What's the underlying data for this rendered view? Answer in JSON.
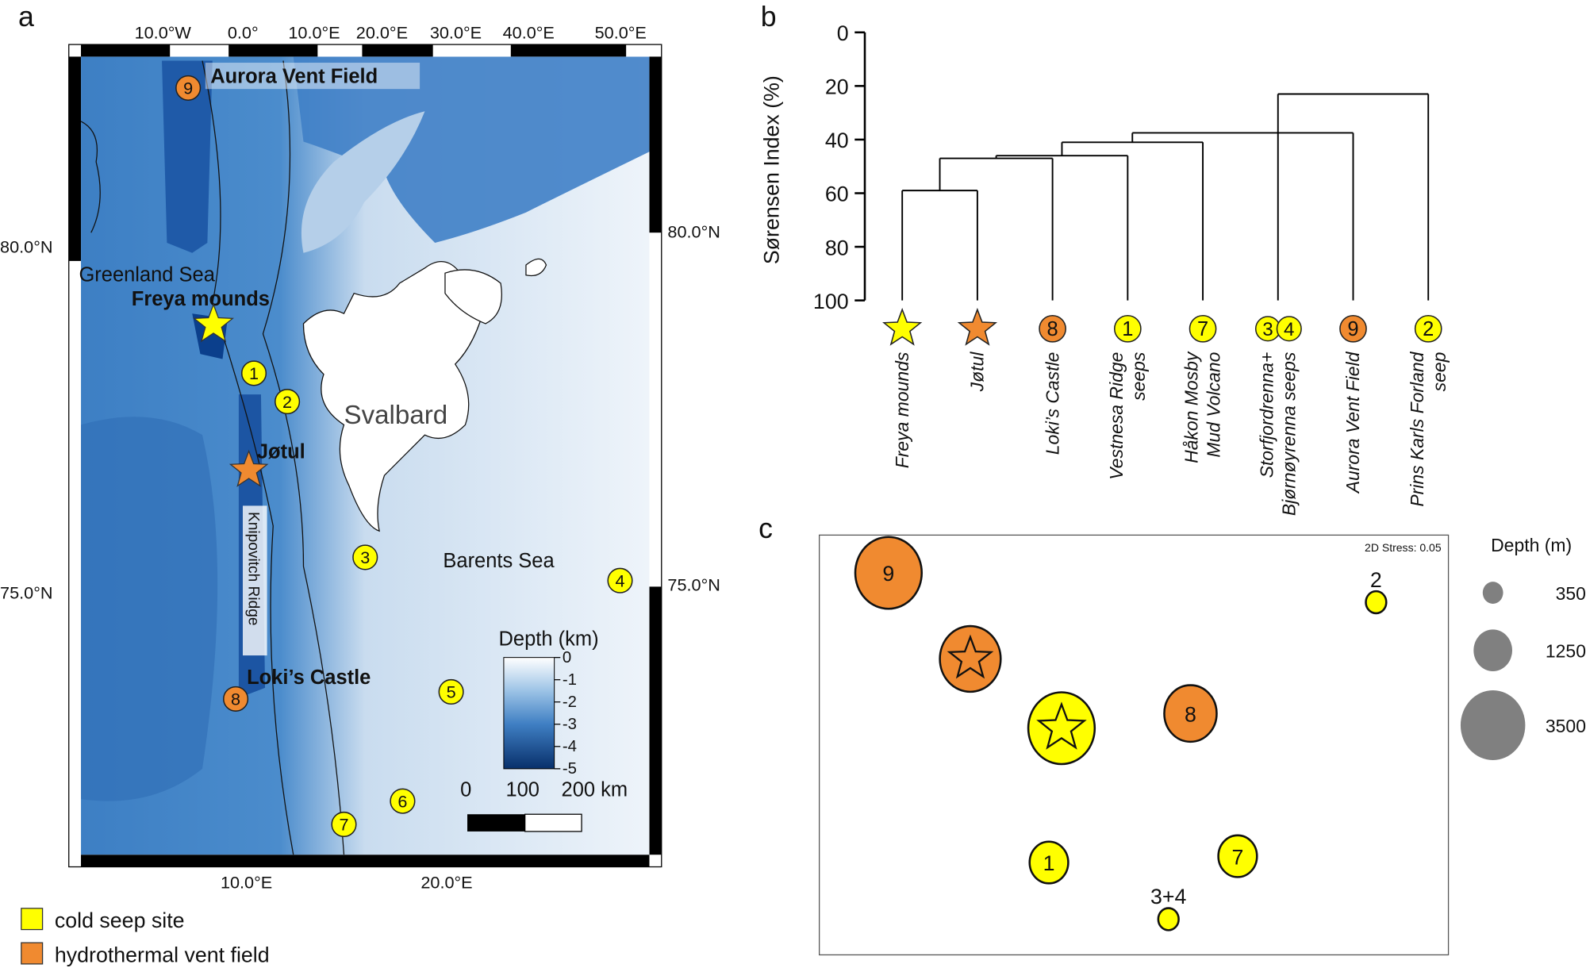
{
  "panels": {
    "a": "a",
    "b": "b",
    "c": "c"
  },
  "colors": {
    "cold_seep": "#ffff00",
    "hydrothermal_vent": "#f08a30",
    "deep_blue": "#0b3f8c",
    "shallow": "#eef4fa",
    "size_legend": "#808080"
  },
  "map": {
    "top_ticks": [
      "10.0°W",
      "0.0°",
      "10.0°E",
      "20.0°E",
      "30.0°E",
      "40.0°E",
      "50.0°E"
    ],
    "bottom_ticks": [
      "10.0°E",
      "20.0°E"
    ],
    "left_ticks": [
      "80.0°N",
      "75.0°N"
    ],
    "right_ticks": [
      "80.0°N",
      "75.0°N"
    ],
    "places": {
      "aurora": "Aurora Vent Field",
      "greenland_sea": "Greenland Sea",
      "freya": "Freya mounds",
      "svalbard": "Svalbard",
      "jotul": "Jøtul",
      "knipovitch": "Knipovitch Ridge",
      "barents": "Barents Sea",
      "loki": "Loki’s Castle"
    },
    "site_numbers": [
      "1",
      "2",
      "3",
      "4",
      "5",
      "6",
      "7",
      "8",
      "9"
    ],
    "depth_bar": {
      "title": "Depth (km)",
      "ticks": [
        "0",
        "1",
        "2",
        "3",
        "4",
        "5"
      ]
    },
    "scale_bar": {
      "labels": [
        "0",
        "100",
        "200 km"
      ]
    }
  },
  "legend": {
    "cold_seep": "cold seep site",
    "hydrothermal": "hydrothermal vent field"
  },
  "chart_data": [
    {
      "type": "dendrogram",
      "ylabel": "Sørensen Index (%)",
      "ylim": [
        0,
        100
      ],
      "yticks": [
        "0",
        "20",
        "40",
        "60",
        "80",
        "100"
      ],
      "leaves": [
        {
          "id": "freya",
          "label": [
            "Freya mounds"
          ],
          "marker": "star",
          "kind": "hydrothermal_cold_seep",
          "color": "#ffff00"
        },
        {
          "id": "jotul",
          "label": [
            "Jøtul"
          ],
          "marker": "star",
          "color": "#f08a30"
        },
        {
          "id": "loki",
          "label": [
            "Loki’s Castle"
          ],
          "marker": "circle",
          "num": "8",
          "color": "#f08a30"
        },
        {
          "id": "vestnesa",
          "label": [
            "Vestnesa Ridge",
            "seeps"
          ],
          "marker": "circle",
          "num": "1",
          "color": "#ffff00"
        },
        {
          "id": "hakon",
          "label": [
            "Håkon Mosby",
            "Mud Volcano"
          ],
          "marker": "circle",
          "num": "7",
          "color": "#ffff00"
        },
        {
          "id": "storfjord",
          "label": [
            "Storfjordrenna+",
            "Bjørnøyrenna seeps"
          ],
          "marker": "double",
          "num": "3",
          "num2": "4",
          "color": "#ffff00"
        },
        {
          "id": "aurora",
          "label": [
            "Aurora Vent Field"
          ],
          "marker": "circle",
          "num": "9",
          "color": "#f08a30"
        },
        {
          "id": "prins",
          "label": [
            "Prins Karls Forland",
            "seep"
          ],
          "marker": "circle",
          "num": "2",
          "color": "#ffff00"
        }
      ],
      "merges": [
        {
          "children": [
            "freya",
            "jotul"
          ],
          "height": 59
        },
        {
          "children": [
            "m0",
            "loki"
          ],
          "height": 47
        },
        {
          "children": [
            "m1",
            "vestnesa"
          ],
          "height": 46
        },
        {
          "children": [
            "m2",
            "hakon"
          ],
          "height": 41
        },
        {
          "children": [
            "m3",
            "storfjord",
            "aurora"
          ],
          "height": 37.5
        },
        {
          "children": [
            "m4",
            "prins"
          ],
          "height": 23
        }
      ]
    },
    {
      "type": "scatter",
      "annotation": "2D Stress: 0.05",
      "xlim": [
        -1,
        1
      ],
      "ylim": [
        -1,
        1
      ],
      "size_legend": {
        "title": "Depth (m)",
        "values": [
          350,
          1250,
          3500
        ]
      },
      "points": [
        {
          "label": "9",
          "x": -0.78,
          "y": 0.82,
          "depth": 3700,
          "color": "#f08a30",
          "marker": "number"
        },
        {
          "label": "Jøtul",
          "x": -0.52,
          "y": 0.41,
          "depth": 3100,
          "color": "#f08a30",
          "marker": "star"
        },
        {
          "label": "Freya mounds",
          "x": -0.23,
          "y": 0.08,
          "depth": 3700,
          "color": "#ffff00",
          "marker": "star"
        },
        {
          "label": "8",
          "x": 0.18,
          "y": 0.15,
          "depth": 2300,
          "color": "#f08a30",
          "marker": "number"
        },
        {
          "label": "2",
          "x": 0.77,
          "y": 0.68,
          "depth": 350,
          "color": "#ffff00",
          "marker": "above"
        },
        {
          "label": "1",
          "x": -0.27,
          "y": -0.56,
          "depth": 1250,
          "color": "#ffff00",
          "marker": "number"
        },
        {
          "label": "7",
          "x": 0.33,
          "y": -0.53,
          "depth": 1250,
          "color": "#ffff00",
          "marker": "number"
        },
        {
          "label": "3+4",
          "x": 0.11,
          "y": -0.83,
          "depth": 350,
          "color": "#ffff00",
          "marker": "above"
        }
      ]
    }
  ]
}
